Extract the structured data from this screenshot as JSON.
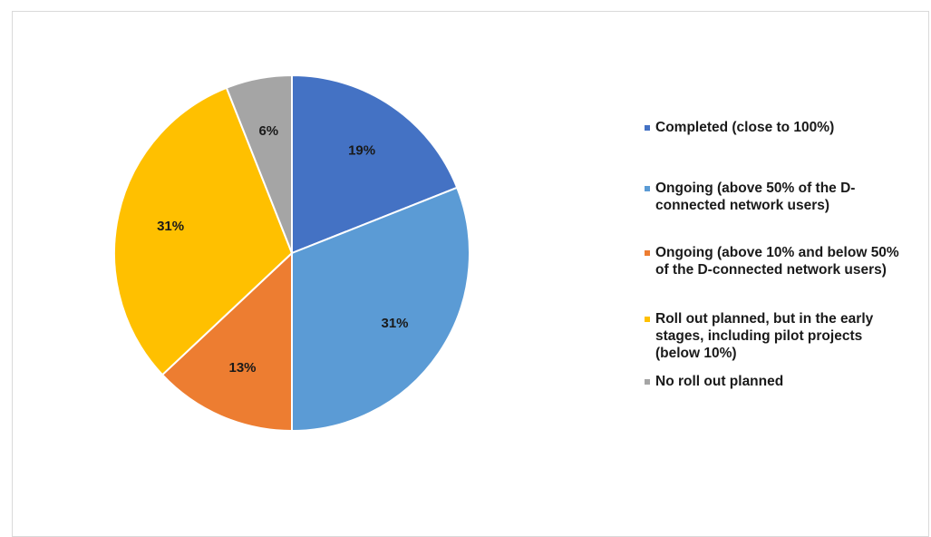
{
  "chart_data": {
    "type": "pie",
    "title": "",
    "start_angle_deg": 0,
    "direction": "clockwise",
    "slices": [
      {
        "label": "Completed (close to 100%)",
        "value": 19,
        "display": "19%",
        "color": "#4472C4"
      },
      {
        "label": "Ongoing (above 50% of the D-connected network users)",
        "value": 31,
        "display": "31%",
        "color": "#5B9BD5"
      },
      {
        "label": "Ongoing (above 10% and below 50% of the D-connected network users)",
        "value": 13,
        "display": "13%",
        "color": "#ED7D31"
      },
      {
        "label": "Roll out planned, but in the early stages, including pilot projects (below 10%)",
        "value": 31,
        "display": "31%",
        "color": "#FFC000"
      },
      {
        "label": "No roll out planned",
        "value": 6,
        "display": "6%",
        "color": "#A5A5A5"
      }
    ],
    "legend_position": "right"
  },
  "legend": {
    "items": [
      {
        "lines": [
          "Completed (close to 100%)"
        ],
        "color": "#4472C4"
      },
      {
        "lines": [
          "Ongoing (above 50% of the D-",
          "connected network users)"
        ],
        "color": "#5B9BD5"
      },
      {
        "lines": [
          "Ongoing (above 10% and below 50%",
          "of the D-connected network users)"
        ],
        "color": "#ED7D31"
      },
      {
        "lines": [
          "Roll out planned, but in the early",
          "stages, including pilot projects",
          "(below 10%)"
        ],
        "color": "#FFC000"
      },
      {
        "lines": [
          "No roll out planned"
        ],
        "color": "#A5A5A5"
      }
    ]
  }
}
